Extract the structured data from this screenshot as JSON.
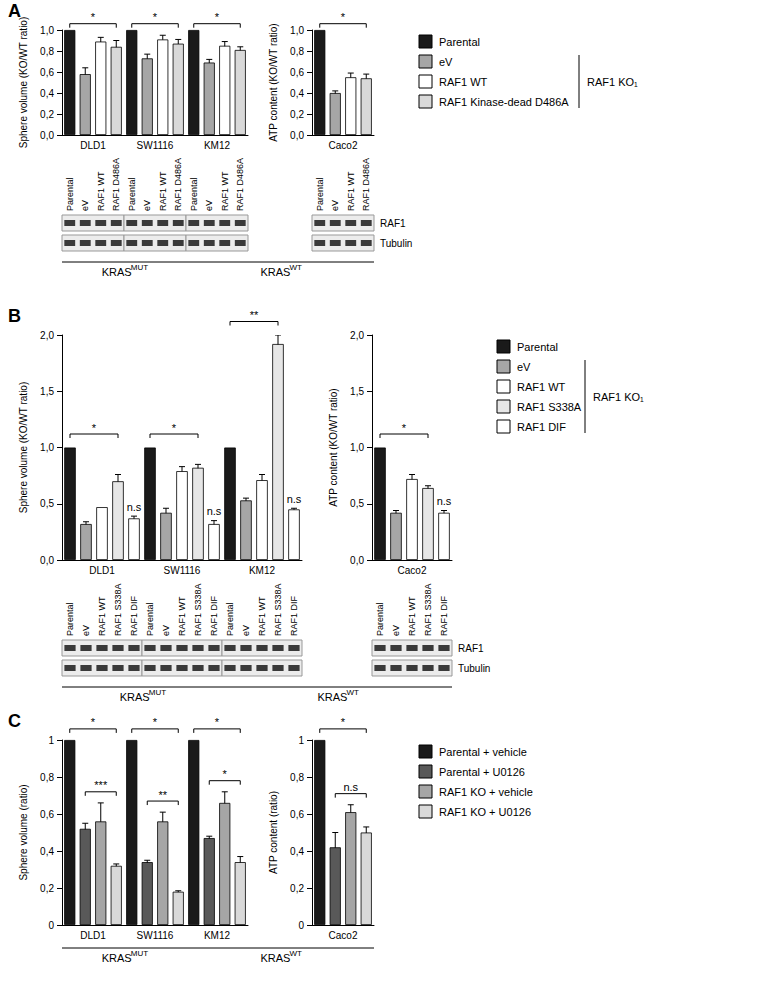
{
  "chart_data": [
    {
      "panel": "A",
      "type": "bar",
      "y_label": "Sphere volume (KO/WT ratio)",
      "categories": [
        "DLD1",
        "SW1116",
        "KM12"
      ],
      "series": [
        {
          "name": "Parental",
          "color": "#1a1a1a",
          "values": [
            1,
            1,
            1
          ],
          "errors": [
            null,
            null,
            null
          ]
        },
        {
          "name": "eV",
          "color": "#a6a6a6",
          "values": [
            0.58,
            0.73,
            0.69
          ],
          "errors": [
            0.06,
            0.04,
            0.03
          ]
        },
        {
          "name": "RAF1 WT",
          "color": "#ffffff",
          "values": [
            0.89,
            0.91,
            0.85
          ],
          "errors": [
            0.04,
            0.04,
            0.04
          ]
        },
        {
          "name": "RAF1 Kinase-dead D486A",
          "color": "#d9d9d9",
          "values": [
            0.84,
            0.87,
            0.81
          ],
          "errors": [
            0.06,
            0.04,
            0.03
          ]
        }
      ],
      "ylim": [
        0,
        1
      ],
      "yticks": [
        {
          "value": 0,
          "label": "0,0"
        },
        {
          "value": 0.2,
          "label": "0,2"
        },
        {
          "value": 0.4,
          "label": "0,4"
        },
        {
          "value": 0.6,
          "label": "0,6"
        },
        {
          "value": 0.8,
          "label": "0,8"
        },
        {
          "value": 1,
          "label": "1,0"
        }
      ],
      "grid": false,
      "annotations": [
        {
          "category": "DLD1",
          "from": "Parental",
          "to": "RAF1 Kinase-dead D486A",
          "text": "*"
        },
        {
          "category": "SW1116",
          "from": "Parental",
          "to": "RAF1 Kinase-dead D486A",
          "text": "*"
        },
        {
          "category": "KM12",
          "from": "Parental",
          "to": "RAF1 Kinase-dead D486A",
          "text": "*"
        }
      ]
    },
    {
      "panel": "A",
      "type": "bar",
      "y_label": "ATP content (KO/WT ratio)",
      "categories": [
        "Caco2"
      ],
      "series": [
        {
          "name": "Parental",
          "color": "#1a1a1a",
          "values": [
            1
          ],
          "errors": [
            null
          ]
        },
        {
          "name": "eV",
          "color": "#a6a6a6",
          "values": [
            0.4
          ],
          "errors": [
            0.02
          ]
        },
        {
          "name": "RAF1 WT",
          "color": "#ffffff",
          "values": [
            0.55
          ],
          "errors": [
            0.04
          ]
        },
        {
          "name": "RAF1 Kinase-dead D486A",
          "color": "#d9d9d9",
          "values": [
            0.54
          ],
          "errors": [
            0.04
          ]
        }
      ],
      "ylim": [
        0,
        1
      ],
      "yticks": [
        {
          "value": 0,
          "label": "0,0"
        },
        {
          "value": 0.2,
          "label": "0,2"
        },
        {
          "value": 0.4,
          "label": "0,4"
        },
        {
          "value": 0.6,
          "label": "0,6"
        },
        {
          "value": 0.8,
          "label": "0,8"
        },
        {
          "value": 1,
          "label": "1,0"
        }
      ],
      "grid": false,
      "legend": "right",
      "annotations": [
        {
          "category": "Caco2",
          "from": "Parental",
          "to": "RAF1 Kinase-dead D486A",
          "text": "*"
        }
      ]
    },
    {
      "panel": "B",
      "type": "bar",
      "y_label": "Sphere volume (KO/WT ratio)",
      "categories": [
        "DLD1",
        "SW1116",
        "KM12"
      ],
      "series": [
        {
          "name": "Parental",
          "color": "#1a1a1a",
          "values": [
            1,
            1,
            1
          ],
          "errors": [
            null,
            null,
            null
          ]
        },
        {
          "name": "eV",
          "color": "#a6a6a6",
          "values": [
            0.32,
            0.42,
            0.53
          ],
          "errors": [
            0.02,
            0.04,
            0.02
          ]
        },
        {
          "name": "RAF1 WT",
          "color": "#ffffff",
          "values": [
            0.47,
            0.79,
            0.71
          ],
          "errors": [
            null,
            0.04,
            0.05
          ]
        },
        {
          "name": "RAF1 S338A",
          "color": "#e6e6e6",
          "values": [
            0.7,
            0.82,
            1.92
          ],
          "errors": [
            0.06,
            0.03,
            0.08
          ]
        },
        {
          "name": "RAF1 DIF",
          "color": "#ffffff",
          "values": [
            0.37,
            0.32,
            0.45
          ],
          "errors": [
            0.02,
            0.03,
            0.01
          ]
        }
      ],
      "ylim": [
        0,
        2
      ],
      "yticks": [
        {
          "value": 0,
          "label": "0,0"
        },
        {
          "value": 0.5,
          "label": "0,5"
        },
        {
          "value": 1,
          "label": "1,0"
        },
        {
          "value": 1.5,
          "label": "1,5"
        },
        {
          "value": 2,
          "label": "2,0"
        }
      ],
      "grid": false,
      "annotations": [
        {
          "category": "DLD1",
          "from": "Parental",
          "to": "RAF1 S338A",
          "text": "*"
        },
        {
          "category": "DLD1",
          "from": "RAF1 DIF",
          "to": "RAF1 DIF",
          "text": "n.s"
        },
        {
          "category": "SW1116",
          "from": "Parental",
          "to": "RAF1 S338A",
          "text": "*"
        },
        {
          "category": "SW1116",
          "from": "RAF1 DIF",
          "to": "RAF1 DIF",
          "text": "n.s"
        },
        {
          "category": "KM12",
          "from": "Parental",
          "to": "RAF1 S338A",
          "text": "**"
        },
        {
          "category": "KM12",
          "from": "RAF1 DIF",
          "to": "RAF1 DIF",
          "text": "n.s"
        }
      ]
    },
    {
      "panel": "B",
      "type": "bar",
      "y_label": "ATP content (KO/WT ratio)",
      "categories": [
        "Caco2"
      ],
      "series": [
        {
          "name": "Parental",
          "color": "#1a1a1a",
          "values": [
            1
          ],
          "errors": [
            null
          ]
        },
        {
          "name": "eV",
          "color": "#a6a6a6",
          "values": [
            0.42
          ],
          "errors": [
            0.02
          ]
        },
        {
          "name": "RAF1 WT",
          "color": "#ffffff",
          "values": [
            0.72
          ],
          "errors": [
            0.04
          ]
        },
        {
          "name": "RAF1 S338A",
          "color": "#e6e6e6",
          "values": [
            0.64
          ],
          "errors": [
            0.02
          ]
        },
        {
          "name": "RAF1 DIF",
          "color": "#ffffff",
          "values": [
            0.42
          ],
          "errors": [
            0.02
          ]
        }
      ],
      "ylim": [
        0,
        2
      ],
      "yticks": [
        {
          "value": 0,
          "label": "0,0"
        },
        {
          "value": 0.5,
          "label": "0,5"
        },
        {
          "value": 1,
          "label": "1,0"
        },
        {
          "value": 1.5,
          "label": "1,5"
        },
        {
          "value": 2,
          "label": "2,0"
        }
      ],
      "grid": false,
      "legend": "right",
      "annotations": [
        {
          "category": "Caco2",
          "from": "Parental",
          "to": "RAF1 S338A",
          "text": "*"
        },
        {
          "category": "Caco2",
          "from": "RAF1 DIF",
          "to": "RAF1 DIF",
          "text": "n.s"
        }
      ]
    },
    {
      "panel": "C",
      "type": "bar",
      "y_label": "Sphere volume (ratio)",
      "categories": [
        "DLD1",
        "SW1116",
        "KM12"
      ],
      "series": [
        {
          "name": "Parental + vehicle",
          "color": "#1a1a1a",
          "values": [
            1,
            1,
            1
          ],
          "errors": [
            null,
            null,
            null
          ]
        },
        {
          "name": "Parental + U0126",
          "color": "#595959",
          "values": [
            0.52,
            0.34,
            0.47
          ],
          "errors": [
            0.03,
            0.01,
            0.01
          ]
        },
        {
          "name": "RAF1 KO + vehicle",
          "color": "#a6a6a6",
          "values": [
            0.56,
            0.56,
            0.66
          ],
          "errors": [
            0.1,
            0.05,
            0.06
          ]
        },
        {
          "name": "RAF1 KO + U0126",
          "color": "#d9d9d9",
          "values": [
            0.32,
            0.18,
            0.34
          ],
          "errors": [
            0.01,
            0.005,
            0.03
          ]
        }
      ],
      "ylim": [
        0,
        1
      ],
      "yticks": [
        0,
        {
          "value": 0.2,
          "label": "0,2"
        },
        {
          "value": 0.4,
          "label": "0,4"
        },
        {
          "value": 0.6,
          "label": "0,6"
        },
        {
          "value": 0.8,
          "label": "0,8"
        },
        1
      ],
      "grid": false,
      "annotations": [
        {
          "category": "DLD1",
          "from": "Parental + vehicle",
          "to": "RAF1 KO + U0126",
          "text": "*"
        },
        {
          "category": "DLD1",
          "from": "Parental + U0126",
          "to": "RAF1 KO + U0126",
          "text": "***"
        },
        {
          "category": "SW1116",
          "from": "Parental + vehicle",
          "to": "RAF1 KO + U0126",
          "text": "*"
        },
        {
          "category": "SW1116",
          "from": "Parental + U0126",
          "to": "RAF1 KO + U0126",
          "text": "**"
        },
        {
          "category": "KM12",
          "from": "Parental + vehicle",
          "to": "RAF1 KO + U0126",
          "text": "*"
        },
        {
          "category": "KM12",
          "from": "Parental + U0126",
          "to": "RAF1 KO + U0126",
          "text": "*"
        }
      ]
    },
    {
      "panel": "C",
      "type": "bar",
      "y_label": "ATP content (ratio)",
      "categories": [
        "Caco2"
      ],
      "series": [
        {
          "name": "Parental + vehicle",
          "color": "#1a1a1a",
          "values": [
            1
          ],
          "errors": [
            null
          ]
        },
        {
          "name": "Parental + U0126",
          "color": "#595959",
          "values": [
            0.42
          ],
          "errors": [
            0.08
          ]
        },
        {
          "name": "RAF1 KO + vehicle",
          "color": "#a6a6a6",
          "values": [
            0.61
          ],
          "errors": [
            0.04
          ]
        },
        {
          "name": "RAF1 KO + U0126",
          "color": "#d9d9d9",
          "values": [
            0.5
          ],
          "errors": [
            0.03
          ]
        }
      ],
      "ylim": [
        0,
        1
      ],
      "yticks": [
        0,
        {
          "value": 0.2,
          "label": "0,2"
        },
        {
          "value": 0.4,
          "label": "0,4"
        },
        {
          "value": 0.6,
          "label": "0,6"
        },
        {
          "value": 0.8,
          "label": "0,8"
        },
        1
      ],
      "grid": false,
      "legend": "right",
      "annotations": [
        {
          "category": "Caco2",
          "from": "Parental + vehicle",
          "to": "RAF1 KO + U0126",
          "text": "*"
        },
        {
          "category": "Caco2",
          "from": "Parental + U0126",
          "to": "RAF1 KO + U0126",
          "text": "n.s"
        }
      ]
    }
  ],
  "panels": [
    {
      "label": "A",
      "legend_bracket": {
        "text": "RAF1 KO₁",
        "series": [
          "eV",
          "RAF1 WT",
          "RAF1 Kinase-dead D486A"
        ]
      },
      "blot": {
        "lanes": [
          "Parental",
          "eV",
          "RAF1 WT",
          "RAF1 D486A"
        ],
        "cell_lines": [
          "DLD1",
          "SW1116",
          "KM12",
          "Caco2"
        ],
        "bands": [
          "RAF1",
          "Tubulin"
        ]
      },
      "genotypes": [
        {
          "text": "KRAS",
          "sup": "MUT",
          "cell_lines": [
            "DLD1",
            "SW1116"
          ]
        },
        {
          "text": "KRAS",
          "sup": "WT",
          "cell_lines": [
            "KM12",
            "Caco2"
          ]
        }
      ]
    },
    {
      "label": "B",
      "legend_bracket": {
        "text": "RAF1 KO₁",
        "series": [
          "eV",
          "RAF1 WT",
          "RAF1 S338A",
          "RAF1 DIF"
        ]
      },
      "blot": {
        "lanes": [
          "Parental",
          "eV",
          "RAF1 WT",
          "RAF1 S338A",
          "RAF1 DIF"
        ],
        "cell_lines": [
          "DLD1",
          "SW1116",
          "KM12",
          "Caco2"
        ],
        "bands": [
          "RAF1",
          "Tubulin"
        ]
      },
      "genotypes": [
        {
          "text": "KRAS",
          "sup": "MUT",
          "cell_lines": [
            "DLD1",
            "SW1116"
          ]
        },
        {
          "text": "KRAS",
          "sup": "WT",
          "cell_lines": [
            "KM12",
            "Caco2"
          ]
        }
      ]
    },
    {
      "label": "C",
      "genotypes": [
        {
          "text": "KRAS",
          "sup": "MUT",
          "cell_lines": [
            "DLD1",
            "SW1116"
          ]
        },
        {
          "text": "KRAS",
          "sup": "WT",
          "cell_lines": [
            "KM12",
            "Caco2"
          ]
        }
      ]
    }
  ]
}
